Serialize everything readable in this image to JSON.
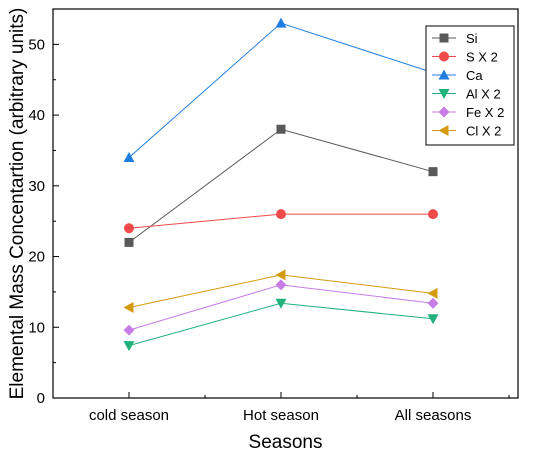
{
  "chart_data": {
    "type": "line",
    "title": "",
    "xlabel": "Seasons",
    "ylabel": "Elemental Mass Concentartion  (arbitrary units)",
    "categories": [
      "cold season",
      "Hot season",
      "All seasons"
    ],
    "ylim": [
      0,
      55
    ],
    "yticks": [
      0,
      10,
      20,
      30,
      40,
      50
    ],
    "grid": false,
    "legend_position": "top-right",
    "series": [
      {
        "name": "Si",
        "values": [
          22,
          38,
          32
        ],
        "color": "#595959",
        "marker": "square"
      },
      {
        "name": "S X 2",
        "values": [
          24,
          26,
          26
        ],
        "color": "#f04a4a",
        "marker": "circle"
      },
      {
        "name": "Ca",
        "values": [
          34,
          53,
          46
        ],
        "color": "#1f7ee0",
        "marker": "triangle-up"
      },
      {
        "name": "Al X 2",
        "values": [
          7.4,
          13.4,
          11.2
        ],
        "color": "#20b27a",
        "marker": "triangle-down"
      },
      {
        "name": "Fe X 2",
        "values": [
          9.6,
          16,
          13.4
        ],
        "color": "#c77de8",
        "marker": "diamond"
      },
      {
        "name": "Cl X 2",
        "values": [
          12.8,
          17.4,
          14.8
        ],
        "color": "#d49a10",
        "marker": "triangle-left"
      }
    ]
  }
}
